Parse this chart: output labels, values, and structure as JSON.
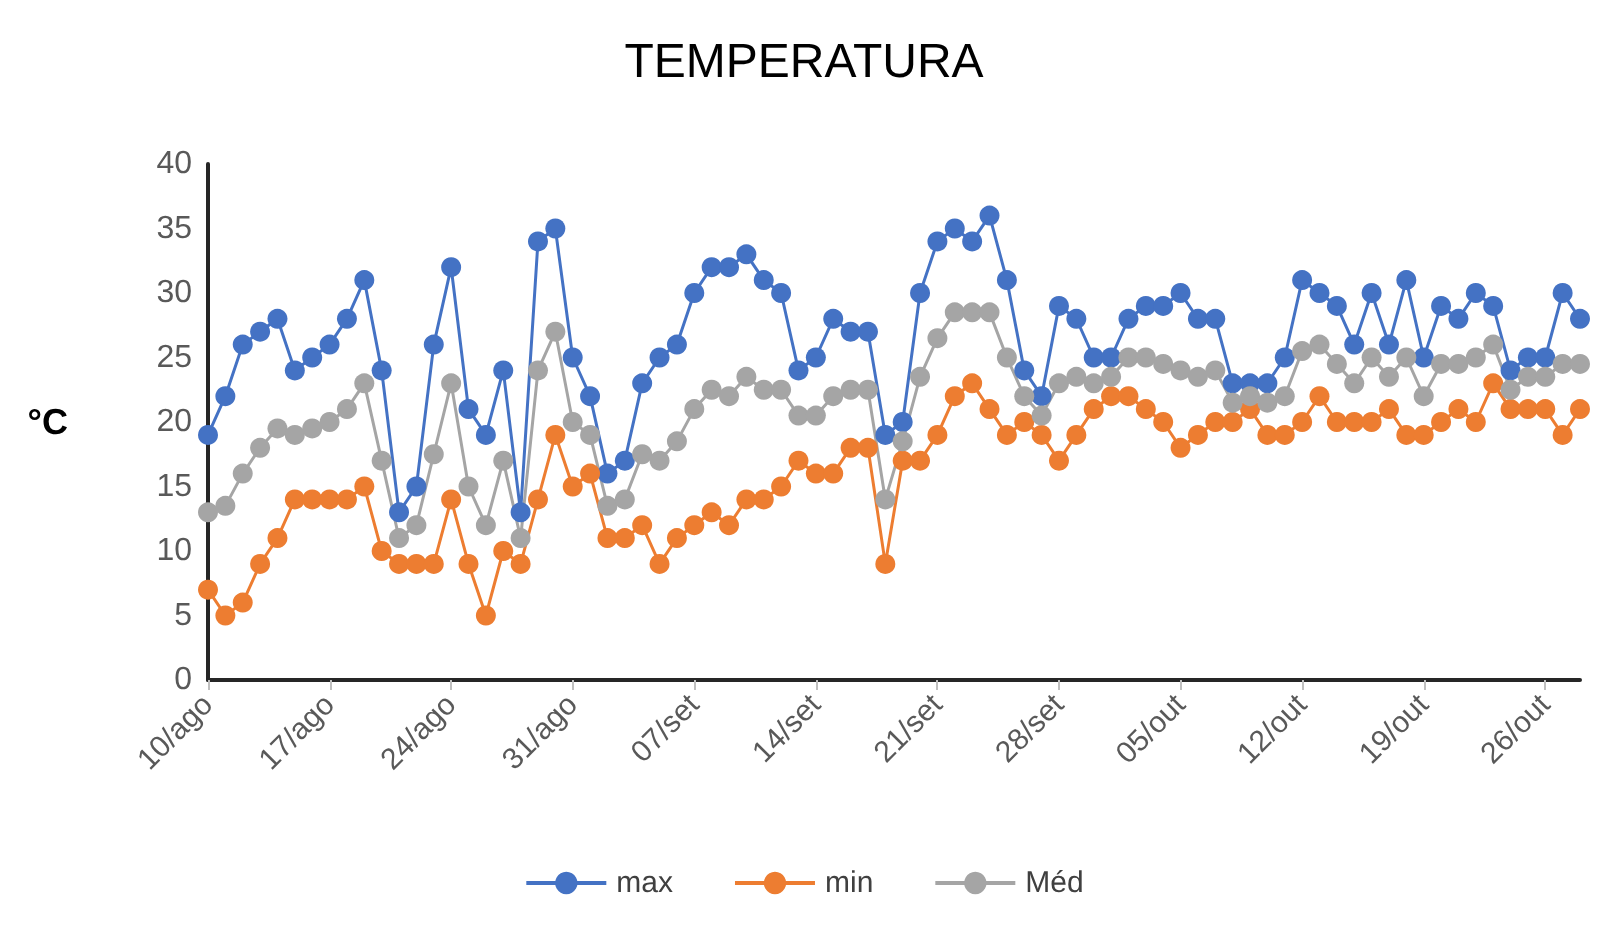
{
  "chart_data": {
    "type": "line",
    "title": "TEMPERATURA",
    "ylabel": "°C",
    "categories": [
      "10/ago",
      null,
      null,
      null,
      null,
      null,
      null,
      "17/ago",
      null,
      null,
      null,
      null,
      null,
      null,
      "24/ago",
      null,
      null,
      null,
      null,
      null,
      null,
      "31/ago",
      null,
      null,
      null,
      null,
      null,
      null,
      "07/set",
      null,
      null,
      null,
      null,
      null,
      null,
      "14/set",
      null,
      null,
      null,
      null,
      null,
      null,
      "21/set",
      null,
      null,
      null,
      null,
      null,
      null,
      "28/set",
      null,
      null,
      null,
      null,
      null,
      null,
      "05/out",
      null,
      null,
      null,
      null,
      null,
      null,
      "12/out",
      null,
      null,
      null,
      null,
      null,
      null,
      "19/out",
      null,
      null,
      null,
      null,
      null,
      null,
      "26/out",
      null,
      null
    ],
    "series": [
      {
        "name": "max",
        "color": "#4472c4",
        "values": [
          19,
          22,
          26,
          27,
          28,
          24,
          25,
          26,
          28,
          31,
          24,
          13,
          15,
          26,
          32,
          21,
          19,
          24,
          13,
          34,
          35,
          25,
          22,
          16,
          17,
          23,
          25,
          26,
          30,
          32,
          32,
          33,
          31,
          30,
          24,
          25,
          28,
          27,
          27,
          19,
          20,
          30,
          34,
          35,
          34,
          36,
          31,
          24,
          22,
          29,
          28,
          25,
          25,
          28,
          29,
          29,
          30,
          28,
          28,
          23,
          23,
          23,
          25,
          31,
          30,
          29,
          26,
          30,
          26,
          31,
          25,
          29,
          28,
          30,
          29,
          24,
          25,
          25,
          30,
          28
        ]
      },
      {
        "name": "min",
        "color": "#ed7d31",
        "values": [
          7,
          5,
          6,
          9,
          11,
          14,
          14,
          14,
          14,
          15,
          10,
          9,
          9,
          9,
          14,
          9,
          5,
          10,
          9,
          14,
          19,
          15,
          16,
          11,
          11,
          12,
          9,
          11,
          12,
          13,
          12,
          14,
          14,
          15,
          17,
          16,
          16,
          18,
          18,
          9,
          17,
          17,
          19,
          22,
          23,
          21,
          19,
          20,
          19,
          17,
          19,
          21,
          22,
          22,
          21,
          20,
          18,
          19,
          20,
          20,
          21,
          19,
          19,
          20,
          22,
          20,
          20,
          20,
          21,
          19,
          19,
          20,
          21,
          20,
          23,
          21,
          21,
          21,
          19,
          21
        ]
      },
      {
        "name": "Méd",
        "color": "#a5a5a5",
        "values": [
          13,
          13.5,
          16,
          18,
          19.5,
          19,
          19.5,
          20,
          21,
          23,
          17,
          11,
          12,
          17.5,
          23,
          15,
          12,
          17,
          11,
          24,
          27,
          20,
          19,
          13.5,
          14,
          17.5,
          17,
          18.5,
          21,
          22.5,
          22,
          23.5,
          22.5,
          22.5,
          20.5,
          20.5,
          22,
          22.5,
          22.5,
          14,
          18.5,
          23.5,
          26.5,
          28.5,
          28.5,
          28.5,
          25,
          22,
          20.5,
          23,
          23.5,
          23,
          23.5,
          25,
          25,
          24.5,
          24,
          23.5,
          24,
          21.5,
          22,
          21.5,
          22,
          25.5,
          26,
          24.5,
          23,
          25,
          23.5,
          25,
          22,
          24.5,
          24.5,
          25,
          26,
          22.5,
          23.5,
          23.5,
          24.5,
          24.5
        ]
      }
    ],
    "ylim": [
      0,
      40
    ],
    "yticks": [
      0,
      5,
      10,
      15,
      20,
      25,
      30,
      35,
      40
    ],
    "grid": false,
    "legend": "bottom",
    "marker": "circle",
    "line_style": "solid"
  }
}
